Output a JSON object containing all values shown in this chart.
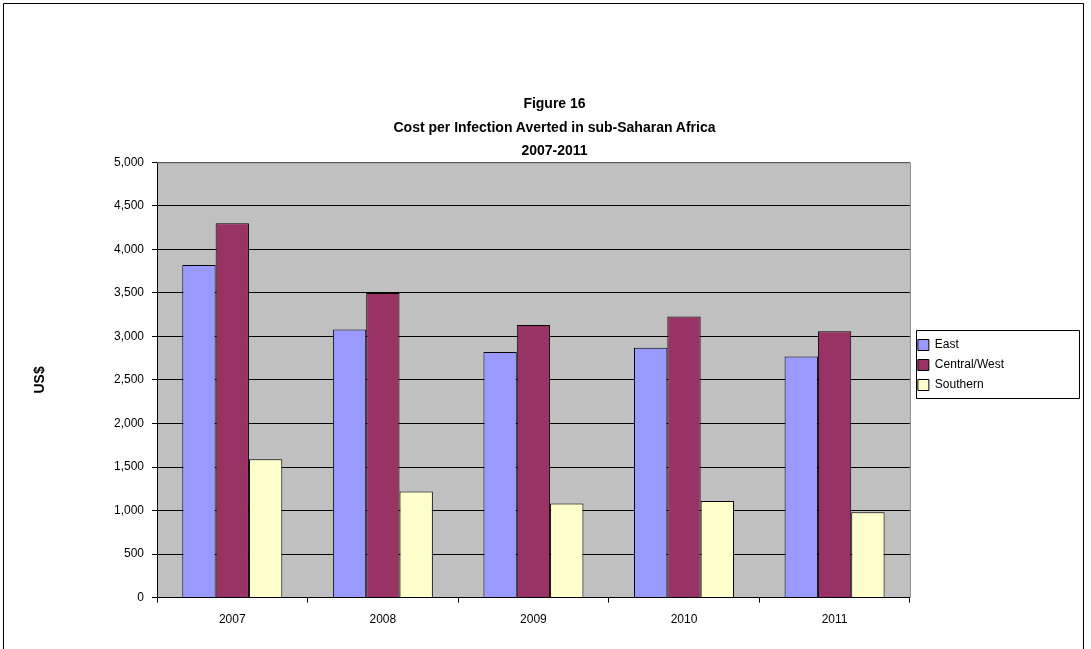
{
  "chart_data": {
    "type": "bar",
    "title": "Figure 16\nCost per Infection Averted in sub-Saharan Africa\n2007-2011",
    "ylabel": "US$",
    "categories": [
      "2007",
      "2008",
      "2009",
      "2010",
      "2011"
    ],
    "series": [
      {
        "name": "East",
        "color": "#9999ff",
        "values": [
          3820,
          3080,
          2820,
          2870,
          2770
        ]
      },
      {
        "name": "Central/West",
        "color": "#993366",
        "values": [
          4300,
          3500,
          3130,
          3230,
          3060
        ]
      },
      {
        "name": "Southern",
        "color": "#ffffcc",
        "values": [
          1590,
          1220,
          1080,
          1110,
          980
        ]
      }
    ],
    "ylim": [
      0,
      5000
    ],
    "yticks": [
      0,
      500,
      {
        "value": 1000,
        "label": "1,000"
      },
      {
        "value": 1500,
        "label": "1,500"
      },
      {
        "value": 2000,
        "label": "2,000"
      },
      {
        "value": 2500,
        "label": "2,500"
      },
      {
        "value": 3000,
        "label": "3,000"
      },
      {
        "value": 3500,
        "label": "3,500"
      },
      {
        "value": 4000,
        "label": "4,000"
      },
      {
        "value": 4500,
        "label": "4,500"
      },
      {
        "value": 5000,
        "label": "5,000"
      }
    ],
    "grid": "y",
    "legend": "right"
  }
}
